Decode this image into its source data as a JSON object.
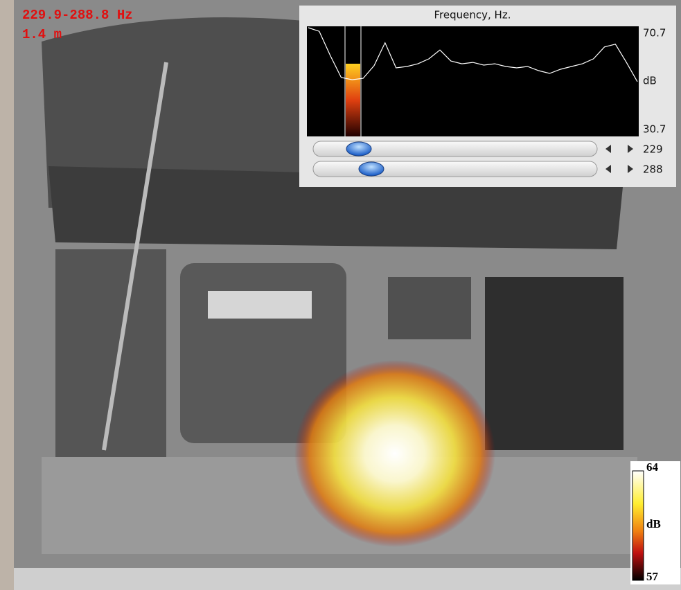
{
  "overlay": {
    "frequency_range": "229.9-288.8 Hz",
    "distance": "1.4 m"
  },
  "spectrum_panel": {
    "title": "Frequency, Hz.",
    "unit": "dB",
    "ylim": [
      30.7,
      70.7
    ],
    "values": [
      70.2,
      68.9,
      60.1,
      52.1,
      51.3,
      51.8,
      56.4,
      64.7,
      55.6,
      56.1,
      57.1,
      58.9,
      62.1,
      58.1,
      57.1,
      57.6,
      56.6,
      57.1,
      56.1,
      55.6,
      56.1,
      54.6,
      53.6,
      55.1,
      56.1,
      57.1,
      58.9,
      63.2,
      64.2,
      57.6,
      50.6
    ],
    "sliders": [
      229,
      288
    ]
  },
  "colorbar": {
    "max": 64,
    "unit": "dB",
    "min": 57
  }
}
